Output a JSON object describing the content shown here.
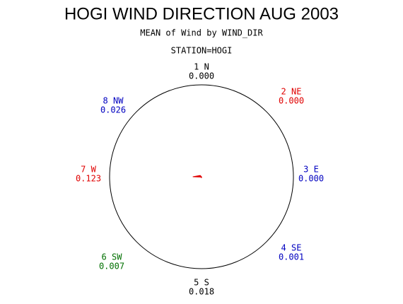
{
  "chart_data": {
    "type": "radar",
    "title": "HOGI WIND DIRECTION AUG 2003",
    "subtitle": "MEAN of Wind by WIND_DIR",
    "group_label": "STATION=HOGI",
    "categories": [
      "1 N",
      "2 NE",
      "3 E",
      "4 SE",
      "5 S",
      "6 SW",
      "7 W",
      "8 NW"
    ],
    "values": [
      0.0,
      0.0,
      0.0,
      0.001,
      0.018,
      0.007,
      0.123,
      0.026
    ],
    "value_labels": [
      "0.000",
      "0.000",
      "0.000",
      "0.001",
      "0.018",
      "0.007",
      "0.123",
      "0.026"
    ],
    "label_colors": [
      "#000000",
      "#e00000",
      "#0000c0",
      "#0000c0",
      "#000000",
      "#007000",
      "#e00000",
      "#0000c0"
    ],
    "color": "#e00000",
    "rlim": [
      0,
      1.3
    ]
  }
}
